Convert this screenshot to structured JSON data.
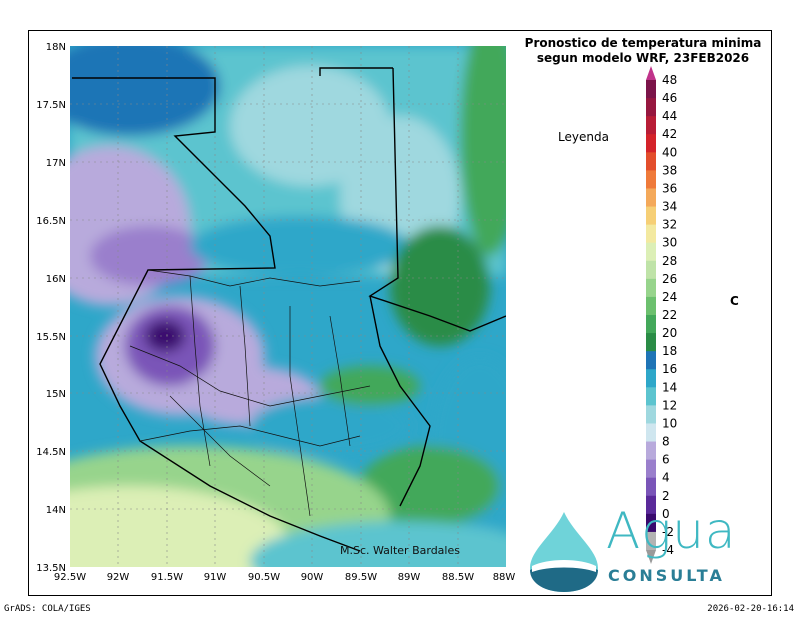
{
  "title": {
    "line1": "Pronostico de temperatura minima",
    "line2": "segun modelo WRF, 23FEB2026"
  },
  "legend": {
    "label": "Leyenda",
    "unit": "C",
    "levels": [
      -4,
      -2,
      0,
      2,
      4,
      6,
      8,
      10,
      12,
      14,
      16,
      18,
      20,
      22,
      24,
      26,
      28,
      30,
      32,
      34,
      36,
      38,
      40,
      42,
      44,
      46,
      48
    ],
    "colors": [
      "#b3b3b3",
      "#3a0a6e",
      "#5a2a9a",
      "#7a55b8",
      "#9a7fcc",
      "#b8aadc",
      "#cfe6ef",
      "#9fd8df",
      "#5cc4cf",
      "#2ea7c9",
      "#1f74b6",
      "#2a8c46",
      "#43a85a",
      "#6cc06e",
      "#97d48c",
      "#bfe3a8",
      "#dcefb6",
      "#f3e9a0",
      "#f6cf76",
      "#f4a95a",
      "#ef7a3a",
      "#e34e2c",
      "#d4232a",
      "#b81d36",
      "#96173f",
      "#7b1449"
    ],
    "color_names": {
      "accent_purple": "#5a2a9a",
      "accent_blue": "#1f74b6",
      "accent_green": "#2a8c46"
    }
  },
  "axes": {
    "lon_labels": [
      "92.5W",
      "92W",
      "91.5W",
      "91W",
      "90.5W",
      "90W",
      "89.5W",
      "89W",
      "88.5W",
      "88W"
    ],
    "lat_labels": [
      "18N",
      "17.5N",
      "17N",
      "16.5N",
      "16N",
      "15.5N",
      "15N",
      "14.5N",
      "14N",
      "13.5N"
    ]
  },
  "credit": "M.Sc. Walter Bardales",
  "logo": {
    "name": "Agua",
    "subtitle": "CONSULTA"
  },
  "footer": {
    "left": "GrADS: COLA/IGES",
    "right": "2026-02-20-16:14"
  }
}
